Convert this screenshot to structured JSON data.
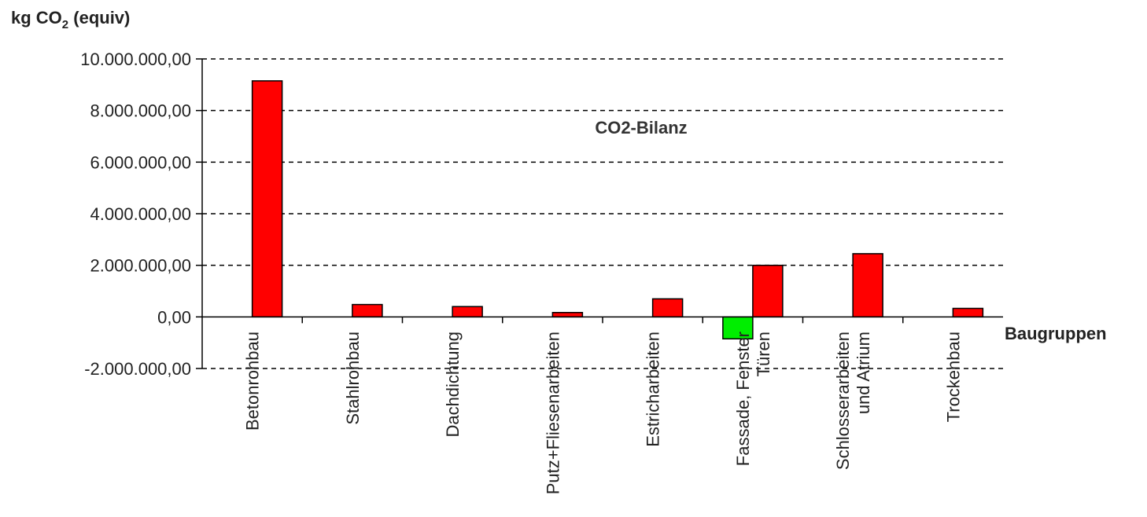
{
  "chart_data": {
    "type": "bar",
    "title": "CO2-Bilanz",
    "ylabel": {
      "main": "kg CO",
      "sub": "2",
      "suffix": " (equiv)"
    },
    "xlabel": "Baugruppen",
    "ylim": [
      -2000000,
      10000000
    ],
    "yticks": [
      10000000,
      8000000,
      6000000,
      4000000,
      2000000,
      0,
      -2000000
    ],
    "ytick_labels": [
      "10.000.000,00",
      "8.000.000,00",
      "6.000.000,00",
      "4.000.000,00",
      "2.000.000,00",
      "0,00",
      "-2.000.000,00"
    ],
    "grid": "horizontal dashed",
    "categories": [
      [
        "Betonrohbau"
      ],
      [
        "Stahlrohbau"
      ],
      [
        "Dachdichtung"
      ],
      [
        "Putz+Fliesenarbeiten"
      ],
      [
        "Estricharbeiten"
      ],
      [
        "Fassade, Fenster",
        "Türen"
      ],
      [
        "Schlosserarbeiten",
        "und Atrium"
      ],
      [
        "Trockenbau"
      ]
    ],
    "series": [
      {
        "color": "#00ee00",
        "values": [
          null,
          null,
          null,
          null,
          null,
          -850000,
          null,
          null
        ]
      },
      {
        "color": "#ff0000",
        "values": [
          9150000,
          480000,
          400000,
          170000,
          700000,
          2000000,
          2450000,
          330000
        ]
      }
    ]
  }
}
